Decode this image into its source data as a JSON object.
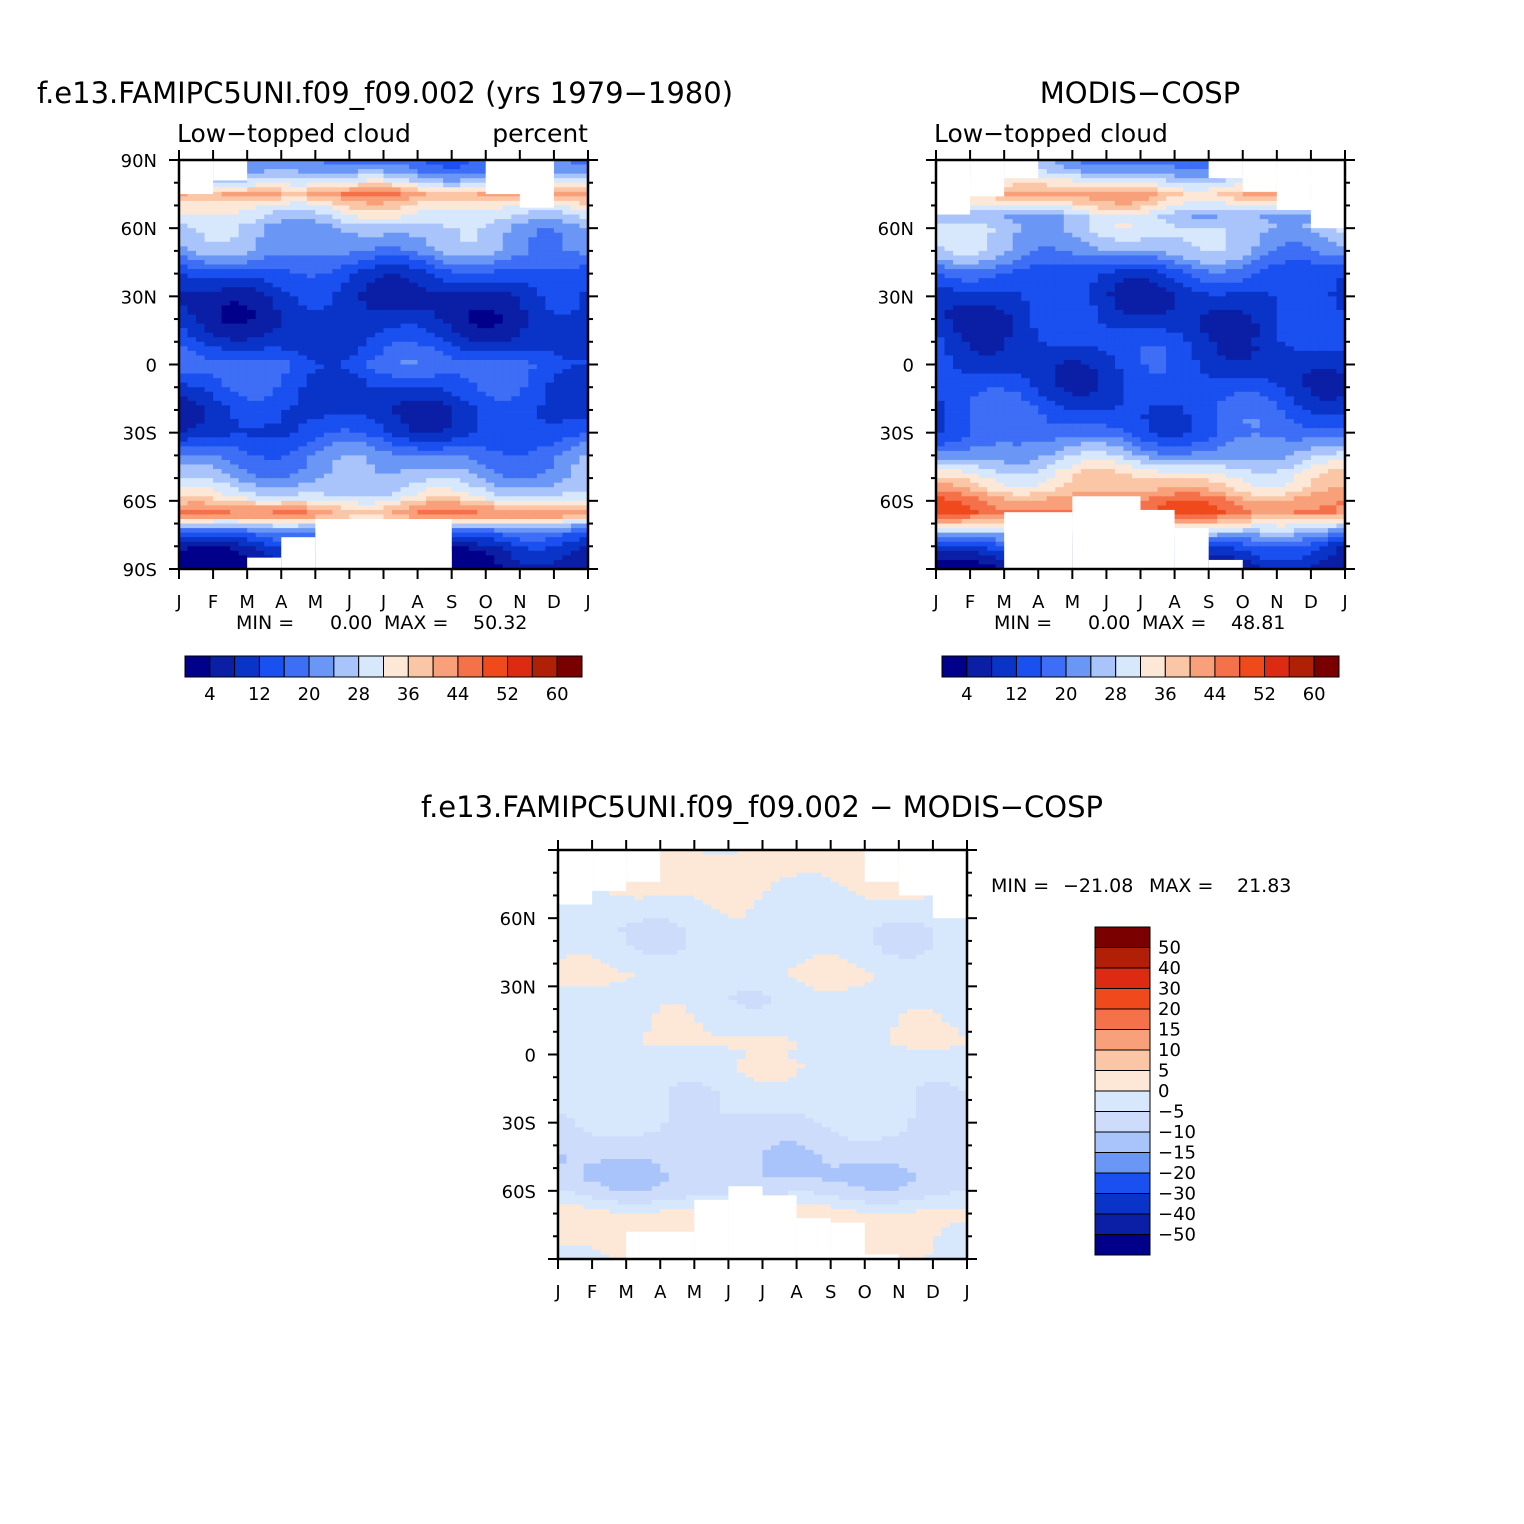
{
  "palettes": {
    "abs": [
      "#00008b",
      "#0a1fa6",
      "#0a34c8",
      "#1a4ff0",
      "#3d6ef5",
      "#6a96f5",
      "#a9c4fa",
      "#d8e8fc",
      "#fde8d8",
      "#fbc6a6",
      "#f7a07a",
      "#f5714a",
      "#f04a1c",
      "#dd2a12",
      "#b02006",
      "#7a0000"
    ],
    "diff": [
      "#00008b",
      "#0a1fa6",
      "#0a34c8",
      "#1a4ff0",
      "#6a96f5",
      "#a9c4fa",
      "#cddcfb",
      "#d8e8fc",
      "#fde8d8",
      "#fbc6a6",
      "#f7a07a",
      "#f5714a",
      "#f04a1c",
      "#dd2a12",
      "#b02006",
      "#7a0000"
    ]
  },
  "chart_data": [
    {
      "type": "heatmap",
      "title": "f.e13.FAMIPC5UNI.f09_f09.002 (yrs 1979−1980)",
      "left_label": "Low−topped cloud",
      "right_label": "percent",
      "x_tick_labels": [
        "J",
        "F",
        "M",
        "A",
        "M",
        "J",
        "J",
        "A",
        "S",
        "O",
        "N",
        "D",
        "J"
      ],
      "y_tick_labels": [
        "90N",
        "60N",
        "30N",
        "0",
        "30S",
        "60S",
        "90S"
      ],
      "ylim": [
        -90,
        90
      ],
      "stats": {
        "min_label": "MIN =",
        "min": "0.00",
        "max_label": "MAX =",
        "max": "50.32"
      },
      "colorbar_labels": [
        "4",
        "12",
        "20",
        "28",
        "36",
        "44",
        "52",
        "60"
      ],
      "months": [
        1,
        2,
        3,
        4,
        5,
        6,
        7,
        8,
        9,
        10,
        11,
        12
      ],
      "lat_profile": {
        "lat": [
          -90,
          -82,
          -75,
          -70,
          -66,
          -62,
          -58,
          -50,
          -40,
          -30,
          -20,
          -10,
          0,
          10,
          20,
          30,
          40,
          50,
          60,
          70,
          75,
          80,
          85,
          90
        ],
        "val": [
          4,
          6,
          14,
          27,
          44,
          38,
          30,
          24,
          20,
          12,
          10,
          13,
          17,
          11,
          8,
          8,
          13,
          22,
          25,
          34,
          42,
          30,
          22,
          18
        ]
      },
      "missing": [
        [
          1,
          2,
          75,
          90
        ],
        [
          2,
          3,
          81,
          90
        ],
        [
          10,
          12,
          75,
          90
        ],
        [
          11,
          12,
          69,
          90
        ],
        [
          3,
          4,
          -90,
          -85
        ],
        [
          4,
          5,
          -90,
          -76
        ],
        [
          5,
          9,
          -90,
          -68
        ],
        [
          7,
          9,
          -90,
          -72
        ],
        [
          8,
          9,
          -90,
          -82
        ]
      ]
    },
    {
      "type": "heatmap",
      "title": "MODIS−COSP",
      "left_label": "Low−topped cloud",
      "right_label": "",
      "x_tick_labels": [
        "J",
        "F",
        "M",
        "A",
        "M",
        "J",
        "J",
        "A",
        "S",
        "O",
        "N",
        "D",
        "J"
      ],
      "y_tick_labels": [
        "60N",
        "30N",
        "0",
        "30S",
        "60S"
      ],
      "ylim": [
        -90,
        90
      ],
      "stats": {
        "min_label": "MIN =",
        "min": "0.00",
        "max_label": "MAX =",
        "max": "48.81"
      },
      "colorbar_labels": [
        "4",
        "12",
        "20",
        "28",
        "36",
        "44",
        "52",
        "60"
      ],
      "months": [
        1,
        2,
        3,
        4,
        5,
        6,
        7,
        8,
        9,
        10,
        11,
        12
      ],
      "lat_profile": {
        "lat": [
          -90,
          -80,
          -75,
          -70,
          -65,
          -60,
          -55,
          -48,
          -40,
          -30,
          -20,
          -10,
          0,
          10,
          20,
          30,
          40,
          50,
          60,
          65,
          70,
          75,
          80,
          85,
          90
        ],
        "val": [
          4,
          12,
          22,
          34,
          46,
          44,
          38,
          33,
          24,
          16,
          14,
          12,
          11,
          12,
          10,
          10,
          14,
          24,
          28,
          26,
          34,
          40,
          32,
          24,
          20
        ]
      },
      "missing": [
        [
          1,
          2,
          66,
          90
        ],
        [
          2,
          3,
          74,
          90
        ],
        [
          3,
          4,
          82,
          90
        ],
        [
          9,
          10,
          82,
          90
        ],
        [
          10,
          11,
          76,
          90
        ],
        [
          11,
          12,
          68,
          90
        ],
        [
          12,
          13,
          60,
          90
        ],
        [
          3,
          5,
          -90,
          -65
        ],
        [
          5,
          7,
          -90,
          -58
        ],
        [
          7,
          8,
          -90,
          -64
        ],
        [
          8,
          9,
          -90,
          -72
        ],
        [
          9,
          10,
          -90,
          -86
        ]
      ]
    },
    {
      "type": "heatmap",
      "title": "f.e13.FAMIPC5UNI.f09_f09.002 − MODIS−COSP",
      "left_label": "",
      "right_label": "",
      "x_tick_labels": [
        "J",
        "F",
        "M",
        "A",
        "M",
        "J",
        "J",
        "A",
        "S",
        "O",
        "N",
        "D",
        "J"
      ],
      "y_tick_labels": [
        "60N",
        "30N",
        "0",
        "30S",
        "60S"
      ],
      "ylim": [
        -90,
        90
      ],
      "stats": {
        "min_label": "MIN =",
        "min": "−21.08",
        "max_label": "MAX =",
        "max": "21.83"
      },
      "colorbar_labels": [
        "50",
        "40",
        "30",
        "20",
        "15",
        "10",
        "5",
        "0",
        "−5",
        "−10",
        "−15",
        "−20",
        "−30",
        "−40",
        "−50"
      ],
      "months": [
        1,
        2,
        3,
        4,
        5,
        6,
        7,
        8,
        9,
        10,
        11,
        12
      ],
      "lat_profile": {
        "lat": [
          -90,
          -80,
          -70,
          -62,
          -55,
          -45,
          -35,
          -25,
          -15,
          -5,
          0,
          5,
          15,
          25,
          35,
          45,
          55,
          65,
          75,
          85,
          90
        ],
        "val": [
          -1,
          1,
          2,
          -6,
          -10,
          -9,
          -6,
          -4,
          -3,
          -1,
          -2,
          0,
          -2,
          -3,
          0,
          -3,
          -4,
          -2,
          1,
          3,
          2
        ]
      },
      "missing": [
        [
          1,
          2,
          66,
          90
        ],
        [
          2,
          3,
          72,
          90
        ],
        [
          3,
          4,
          76,
          90
        ],
        [
          10,
          11,
          76,
          90
        ],
        [
          11,
          12,
          70,
          90
        ],
        [
          12,
          13,
          60,
          90
        ],
        [
          3,
          5,
          -90,
          -78
        ],
        [
          5,
          6,
          -90,
          -64
        ],
        [
          6,
          7,
          -90,
          -58
        ],
        [
          7,
          8,
          -90,
          -62
        ],
        [
          8,
          9,
          -90,
          -72
        ],
        [
          9,
          10,
          -90,
          -74
        ],
        [
          10,
          11,
          -90,
          -88
        ]
      ]
    }
  ]
}
